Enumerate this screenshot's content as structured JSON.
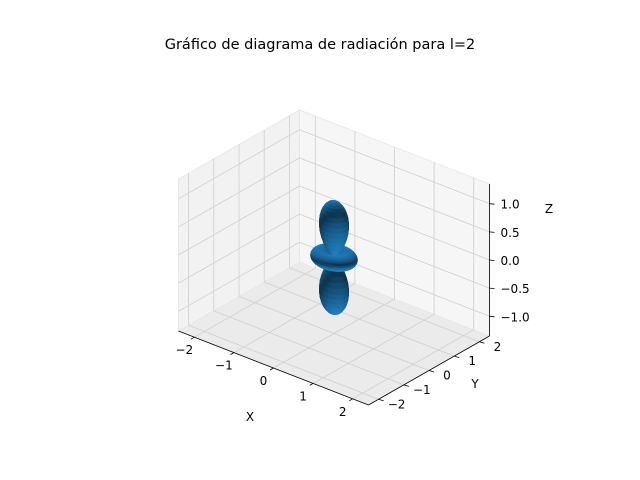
{
  "chart_data": {
    "type": "surface3d",
    "title": "Gráfico de diagrama de radiación para l=2",
    "xlabel": "X",
    "ylabel": "Y",
    "zlabel": "Z",
    "function": "r = |Y_2^0(theta)| = |3cos^2(theta) - 1| / 2",
    "xlim": [
      -2.4,
      2.4
    ],
    "ylim": [
      -2.4,
      2.4
    ],
    "zlim": [
      -1.35,
      1.35
    ],
    "x_ticks": [
      {
        "value": -2,
        "label": "−2"
      },
      {
        "value": -1,
        "label": "−1"
      },
      {
        "value": 0,
        "label": "0"
      },
      {
        "value": 1,
        "label": "1"
      },
      {
        "value": 2,
        "label": "2"
      }
    ],
    "y_ticks": [
      {
        "value": -2,
        "label": "−2"
      },
      {
        "value": -1,
        "label": "−1"
      },
      {
        "value": 0,
        "label": "0"
      },
      {
        "value": 1,
        "label": "1"
      },
      {
        "value": 2,
        "label": "2"
      }
    ],
    "z_ticks": [
      {
        "value": -1.0,
        "label": "−1.0"
      },
      {
        "value": -0.5,
        "label": "−0.5"
      },
      {
        "value": 0.0,
        "label": "0.0"
      },
      {
        "value": 0.5,
        "label": "0.5"
      },
      {
        "value": 1.0,
        "label": "1.0"
      }
    ],
    "surface_color": "#1f77b4",
    "grid": true
  }
}
